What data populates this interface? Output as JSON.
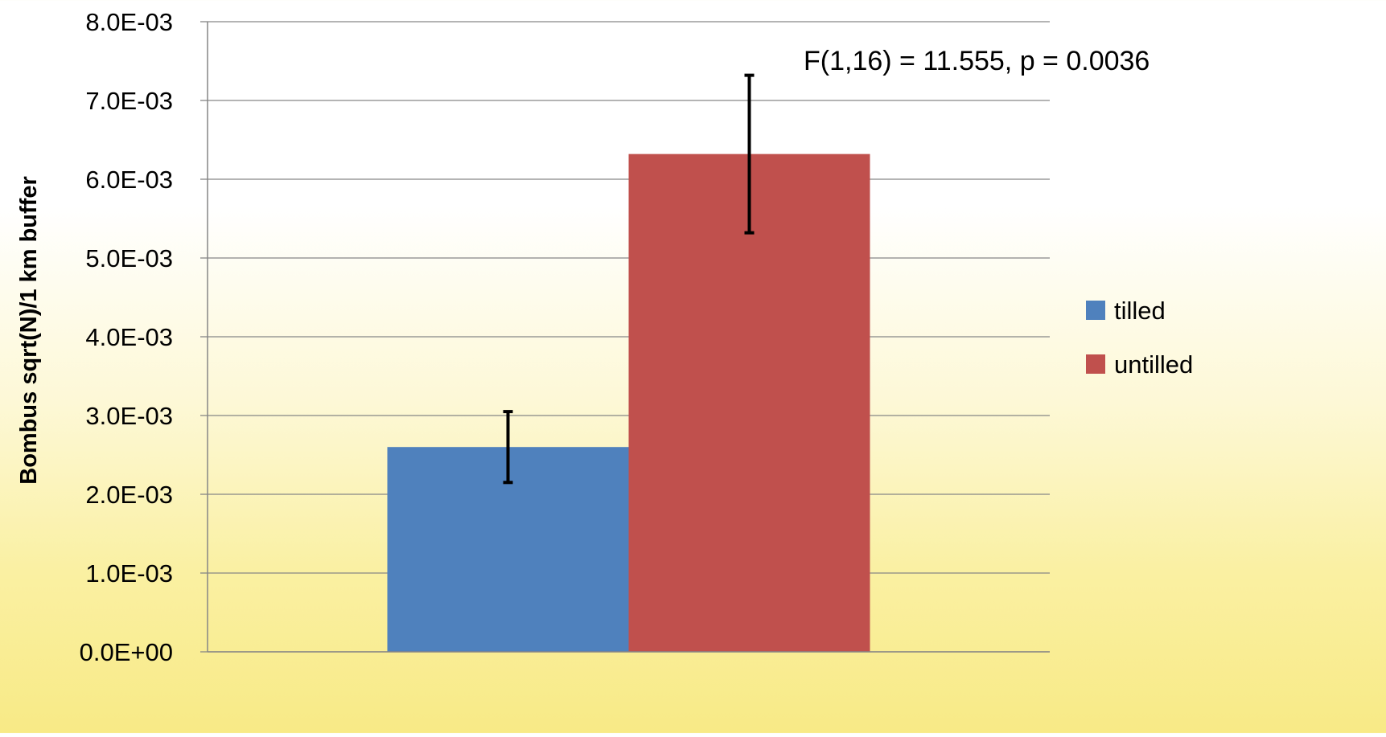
{
  "chart_data": {
    "type": "bar",
    "categories": [
      ""
    ],
    "series": [
      {
        "name": "tilled",
        "values": [
          0.0026
        ],
        "error_lower": [
          0.00215
        ],
        "error_upper": [
          0.00305
        ],
        "color": "#4f81bd"
      },
      {
        "name": "untilled",
        "values": [
          0.00632
        ],
        "error_lower": [
          0.00532
        ],
        "error_upper": [
          0.00732
        ],
        "color": "#c0504d"
      }
    ],
    "title": "",
    "xlabel": "",
    "ylabel": "Bombus sqrt(N)/1 km buffer",
    "ylim": [
      0,
      0.008
    ],
    "yticks": [
      {
        "value": 0.0,
        "label": "0.0E+00"
      },
      {
        "value": 0.001,
        "label": "1.0E-03"
      },
      {
        "value": 0.002,
        "label": "2.0E-03"
      },
      {
        "value": 0.003,
        "label": "3.0E-03"
      },
      {
        "value": 0.004,
        "label": "4.0E-03"
      },
      {
        "value": 0.005,
        "label": "5.0E-03"
      },
      {
        "value": 0.006,
        "label": "6.0E-03"
      },
      {
        "value": 0.007,
        "label": "7.0E-03"
      },
      {
        "value": 0.008,
        "label": "8.0E-03"
      }
    ],
    "annotation": "F(1,16) = 11.555, p = 0.0036",
    "grid": true,
    "legend_position": "right"
  }
}
